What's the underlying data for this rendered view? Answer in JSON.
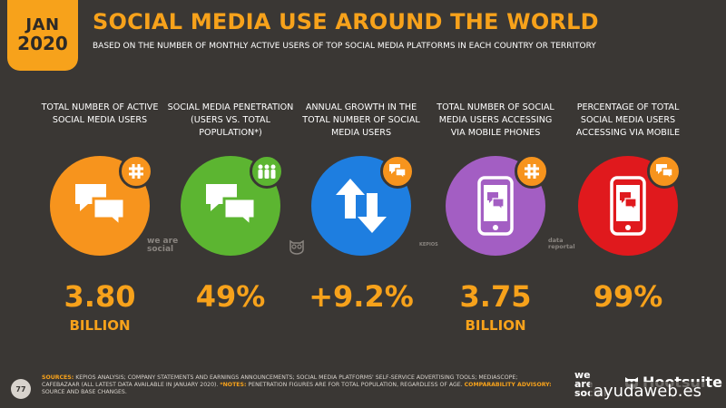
{
  "header": {
    "month": "JAN",
    "year": "2020",
    "title": "SOCIAL MEDIA USE AROUND THE WORLD",
    "subtitle": "BASED ON THE NUMBER OF MONTHLY ACTIVE USERS OF TOP SOCIAL MEDIA PLATFORMS IN EACH COUNTRY OR TERRITORY"
  },
  "stats": [
    {
      "label": "TOTAL NUMBER OF ACTIVE SOCIAL MEDIA USERS",
      "value": "3.80",
      "unit": "BILLION",
      "color": "#f7941d",
      "icon": "chat-bubbles-icon",
      "badge_icon": "hashtag-icon"
    },
    {
      "label": "SOCIAL MEDIA PENETRATION (USERS vs. TOTAL POPULATION*)",
      "value": "49%",
      "unit": "",
      "color": "#5cb531",
      "icon": "chat-bubbles-icon",
      "badge_icon": "people-icon"
    },
    {
      "label": "ANNUAL GROWTH IN THE TOTAL NUMBER OF SOCIAL MEDIA USERS",
      "value": "+9.2%",
      "unit": "",
      "color": "#1e7ee0",
      "icon": "up-down-arrows-icon",
      "badge_icon": "chat-icon"
    },
    {
      "label": "TOTAL NUMBER OF SOCIAL MEDIA USERS ACCESSING VIA MOBILE PHONES",
      "value": "3.75",
      "unit": "BILLION",
      "color": "#a35ec3",
      "icon": "mobile-phone-icon",
      "badge_icon": "hashtag-icon"
    },
    {
      "label": "PERCENTAGE OF TOTAL SOCIAL MEDIA USERS ACCESSING VIA MOBILE",
      "value": "99%",
      "unit": "",
      "color": "#e0191d",
      "icon": "mobile-phone-icon",
      "badge_icon": "chat-icon"
    }
  ],
  "source_logos": {
    "was": "we are social",
    "kepios": "KEPIOS",
    "datareportal": "data reportal"
  },
  "footer": {
    "page": "77",
    "sources_label": "SOURCES:",
    "sources_text": "KEPIOS ANALYSIS; COMPANY STATEMENTS AND EARNINGS ANNOUNCEMENTS; SOCIAL MEDIA PLATFORMS' SELF-SERVICE ADVERTISING TOOLS; MEDIASCOPE; CAFEBAZAAR (ALL LATEST DATA AVAILABLE IN JANUARY 2020).",
    "notes_label": "*NOTES:",
    "notes_text": "PENETRATION FIGURES ARE FOR TOTAL POPULATION, REGARDLESS OF AGE.",
    "advisory_label": "COMPARABILITY ADVISORY:",
    "advisory_text": "SOURCE AND BASE CHANGES."
  },
  "brand": {
    "we_are_social": "we are social",
    "hootsuite": "Hootsuite",
    "watermark": "ayudaweb.es"
  }
}
